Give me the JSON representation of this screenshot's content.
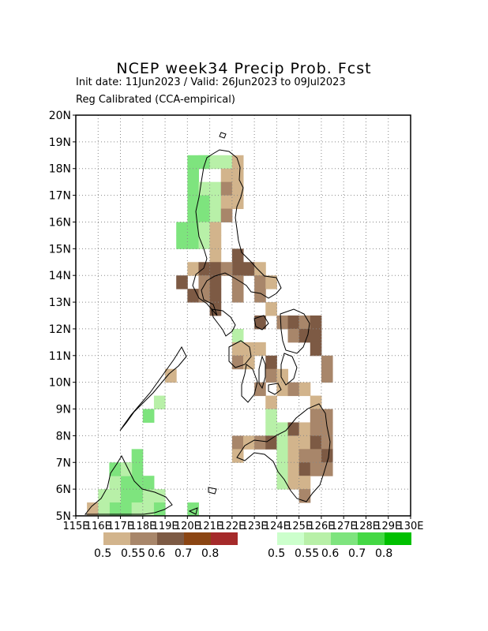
{
  "title": "NCEP  week34  Precip  Prob.  Fcst",
  "subtitle_line1": "Init date: 11Jun2023 / Valid: 26Jun2023 to 09Jul2023",
  "subtitle_line2": "Reg Calibrated (CCA-empirical)",
  "map": {
    "lon_range": [
      115,
      130
    ],
    "lat_range": [
      5,
      20
    ],
    "lat_ticks": [
      "5N",
      "6N",
      "7N",
      "8N",
      "9N",
      "10N",
      "11N",
      "12N",
      "13N",
      "14N",
      "15N",
      "16N",
      "17N",
      "18N",
      "19N",
      "20N"
    ],
    "lon_ticks": [
      "115E",
      "116E",
      "117E",
      "118E",
      "119E",
      "120E",
      "121E",
      "122E",
      "123E",
      "124E",
      "125E",
      "126E",
      "127E",
      "128E",
      "129E",
      "130E"
    ],
    "grid": "dotted",
    "cell_size_deg": 0.5,
    "categories": {
      "b1": "#d2b48c",
      "b2": "#a8866a",
      "b3": "#7d5a44",
      "b4": "#8b4513",
      "b5": "#a52a2a",
      "a1": "#ccffcc",
      "a2": "#b8f0a8",
      "a3": "#7ee47e",
      "a4": "#44d844",
      "a5": "#00c000"
    },
    "cells": [
      [
        "a3",
        120,
        18
      ],
      [
        "a3",
        120,
        17.5
      ],
      [
        "a2",
        120.5,
        18
      ],
      [
        "a3",
        120.5,
        18
      ],
      [
        "a2",
        121,
        18
      ],
      [
        "a2",
        121.5,
        18
      ],
      [
        "b1",
        122,
        18
      ],
      [
        "a3",
        120,
        17
      ],
      [
        "a2",
        120.5,
        17
      ],
      [
        "a2",
        121,
        17
      ],
      [
        "b1",
        121.5,
        17.5
      ],
      [
        "b2",
        121.5,
        17
      ],
      [
        "b1",
        122,
        17.5
      ],
      [
        "b1",
        122,
        17
      ],
      [
        "a3",
        120,
        16.5
      ],
      [
        "a3",
        120.5,
        16.5
      ],
      [
        "a2",
        121,
        16.5
      ],
      [
        "b1",
        121.5,
        16.5
      ],
      [
        "b1",
        122,
        16.5
      ],
      [
        "a3",
        120,
        16
      ],
      [
        "a3",
        120.5,
        16
      ],
      [
        "a2",
        121,
        16
      ],
      [
        "b2",
        121.5,
        16
      ],
      [
        "a3",
        119.5,
        15.5
      ],
      [
        "a3",
        120,
        15.5
      ],
      [
        "a2",
        120.5,
        15.5
      ],
      [
        "b1",
        121,
        15.5
      ],
      [
        "a3",
        119.5,
        15
      ],
      [
        "a3",
        120,
        15
      ],
      [
        "a2",
        120.5,
        15
      ],
      [
        "b1",
        121,
        15
      ],
      [
        "b1",
        121,
        14.5
      ],
      [
        "b3",
        122,
        14.5
      ],
      [
        "b3",
        122,
        14
      ],
      [
        "b1",
        120,
        14
      ],
      [
        "b3",
        120.5,
        14
      ],
      [
        "b3",
        121,
        14
      ],
      [
        "b2",
        121.5,
        14
      ],
      [
        "b2",
        122,
        13.5
      ],
      [
        "b3",
        122.5,
        14
      ],
      [
        "b1",
        123,
        14
      ],
      [
        "b3",
        119.5,
        13.5
      ],
      [
        "b2",
        120.5,
        13.5
      ],
      [
        "b3",
        121,
        13.5
      ],
      [
        "b2",
        122,
        13
      ],
      [
        "b2",
        123,
        13.5
      ],
      [
        "b1",
        123.5,
        13.5
      ],
      [
        "b3",
        120,
        13
      ],
      [
        "b2",
        120.5,
        13
      ],
      [
        "b3",
        121,
        13
      ],
      [
        "b2",
        123,
        13
      ],
      [
        "b3",
        121,
        12.5
      ],
      [
        "b1",
        123.5,
        12.5
      ],
      [
        "b3",
        123,
        12
      ],
      [
        "b2",
        124,
        12
      ],
      [
        "b3",
        124.5,
        12
      ],
      [
        "b2",
        125,
        12
      ],
      [
        "b3",
        125.5,
        12
      ],
      [
        "a2",
        122,
        11.5
      ],
      [
        "b2",
        124.5,
        11.5
      ],
      [
        "b3",
        125,
        11.5
      ],
      [
        "b3",
        125.5,
        11.5
      ],
      [
        "b1",
        122,
        11
      ],
      [
        "b1",
        122.5,
        11
      ],
      [
        "b1",
        123,
        11
      ],
      [
        "b3",
        125.5,
        11
      ],
      [
        "b2",
        122,
        10.5
      ],
      [
        "b1",
        122.5,
        10.5
      ],
      [
        "b3",
        123.5,
        10.5
      ],
      [
        "b2",
        126,
        10.5
      ],
      [
        "b2",
        123.5,
        10
      ],
      [
        "b1",
        124,
        10
      ],
      [
        "b2",
        126,
        10
      ],
      [
        "b2",
        123,
        9.5
      ],
      [
        "b1",
        124,
        9.5
      ],
      [
        "b2",
        124.5,
        9.5
      ],
      [
        "b1",
        125,
        9.5
      ],
      [
        "b1",
        123.5,
        9
      ],
      [
        "a2",
        123.5,
        8.5
      ],
      [
        "b1",
        125.5,
        9
      ],
      [
        "b2",
        125.5,
        8.5
      ],
      [
        "b2",
        126,
        8.5
      ],
      [
        "a2",
        123.5,
        8
      ],
      [
        "a2",
        124,
        8
      ],
      [
        "b3",
        124.5,
        8
      ],
      [
        "b1",
        125,
        8
      ],
      [
        "b2",
        125.5,
        8
      ],
      [
        "b2",
        126,
        8
      ],
      [
        "b2",
        122,
        7.5
      ],
      [
        "b1",
        122.5,
        7.5
      ],
      [
        "b2",
        123,
        7.5
      ],
      [
        "b3",
        123.5,
        7.5
      ],
      [
        "a2",
        124,
        7.5
      ],
      [
        "b1",
        124.5,
        7.5
      ],
      [
        "b1",
        125,
        7.5
      ],
      [
        "b3",
        125.5,
        7.5
      ],
      [
        "b2",
        126,
        7.5
      ],
      [
        "b1",
        122,
        7
      ],
      [
        "a2",
        124,
        7
      ],
      [
        "b1",
        124.5,
        7
      ],
      [
        "b2",
        125,
        7
      ],
      [
        "b2",
        125.5,
        7
      ],
      [
        "b3",
        126,
        7
      ],
      [
        "a2",
        124,
        6.5
      ],
      [
        "b1",
        124.5,
        6.5
      ],
      [
        "b3",
        125,
        6.5
      ],
      [
        "b2",
        125.5,
        6.5
      ],
      [
        "b2",
        126,
        6.5
      ],
      [
        "a2",
        124,
        6
      ],
      [
        "b1",
        124.5,
        6
      ],
      [
        "b1",
        125,
        6
      ],
      [
        "b2",
        125,
        5.5
      ],
      [
        "a3",
        117.5,
        7
      ],
      [
        "a3",
        117.5,
        6.5
      ],
      [
        "a3",
        117,
        6.5
      ],
      [
        "a3",
        117,
        6
      ],
      [
        "a3",
        117.5,
        6
      ],
      [
        "a2",
        116.5,
        6
      ],
      [
        "a2",
        117,
        6.5
      ],
      [
        "a3",
        117.5,
        5.5
      ],
      [
        "a3",
        117,
        5.5
      ],
      [
        "a2",
        116.5,
        5.5
      ],
      [
        "a2",
        118,
        5.5
      ],
      [
        "a3",
        118,
        6
      ],
      [
        "a2",
        118.5,
        5.5
      ],
      [
        "a2",
        116,
        5.5
      ],
      [
        "a3",
        116.5,
        5
      ],
      [
        "a3",
        117,
        5
      ],
      [
        "a2",
        117.5,
        5
      ],
      [
        "a2",
        118,
        5
      ],
      [
        "a3",
        118.5,
        5
      ],
      [
        "b1",
        115.5,
        5
      ],
      [
        "a2",
        116,
        5
      ],
      [
        "a3",
        116.5,
        6.5
      ],
      [
        "a3",
        118,
        8.5
      ],
      [
        "a2",
        118.5,
        9
      ],
      [
        "b1",
        119,
        10
      ],
      [
        "a3",
        120,
        5
      ]
    ]
  },
  "legend_below": {
    "colors": [
      "#d2b48c",
      "#a8866a",
      "#7d5a44",
      "#8b4513",
      "#a52a2a"
    ],
    "labels": [
      "0.5",
      "0.55",
      "0.6",
      "0.7",
      "0.8"
    ]
  },
  "legend_above": {
    "colors": [
      "#ccffcc",
      "#b8f0a8",
      "#7ee47e",
      "#44d844",
      "#00c000"
    ],
    "labels": [
      "0.5",
      "0.55",
      "0.6",
      "0.7",
      "0.8"
    ]
  }
}
